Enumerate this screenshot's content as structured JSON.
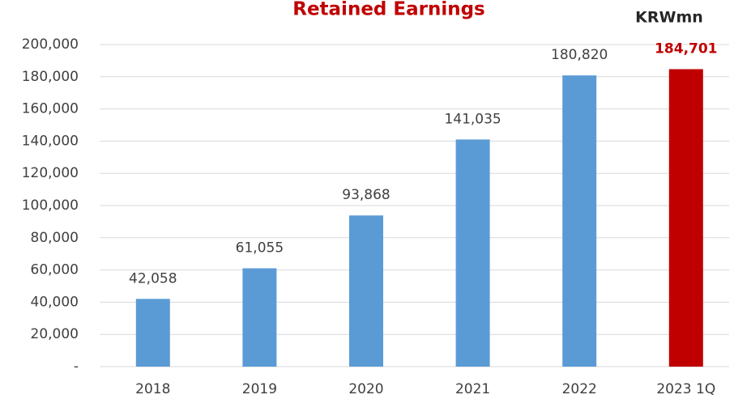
{
  "chart_data": {
    "type": "bar",
    "title": "Retained Earnings",
    "unit_label": "KRWmn",
    "categories": [
      "2018",
      "2019",
      "2020",
      "2021",
      "2022",
      "2023 1Q"
    ],
    "series": [
      {
        "values": [
          42058,
          61055,
          93868,
          141035,
          180820,
          184701
        ],
        "value_labels": [
          "42,058",
          "61,055",
          "93,868",
          "141,035",
          "180,820",
          "184,701"
        ],
        "colors": [
          "#5b9bd5",
          "#5b9bd5",
          "#5b9bd5",
          "#5b9bd5",
          "#5b9bd5",
          "#c00000"
        ],
        "value_label_colors": [
          "#404040",
          "#404040",
          "#404040",
          "#404040",
          "#404040",
          "#c00000"
        ],
        "value_label_bold": [
          false,
          false,
          false,
          false,
          false,
          true
        ]
      }
    ],
    "ylim": [
      0,
      200000
    ],
    "yticks": [
      {
        "value": 0,
        "label": "-"
      },
      {
        "value": 20000,
        "label": "20,000"
      },
      {
        "value": 40000,
        "label": "40,000"
      },
      {
        "value": 60000,
        "label": "60,000"
      },
      {
        "value": 80000,
        "label": "80,000"
      },
      {
        "value": 100000,
        "label": "100,000"
      },
      {
        "value": 120000,
        "label": "120,000"
      },
      {
        "value": 140000,
        "label": "140,000"
      },
      {
        "value": 160000,
        "label": "160,000"
      },
      {
        "value": 180000,
        "label": "180,000"
      },
      {
        "value": 200000,
        "label": "200,000"
      }
    ],
    "grid": true
  }
}
